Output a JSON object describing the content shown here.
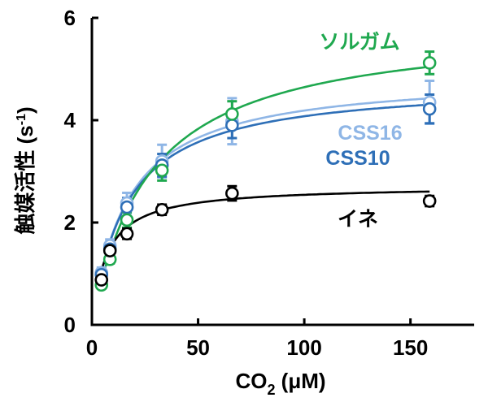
{
  "chart_data": {
    "type": "scatter",
    "xlabel": {
      "main": "CO",
      "sub": "2",
      "unit": " (μM)"
    },
    "ylabel": {
      "main": "触媒活性",
      "unit": " (s",
      "sup": "-1",
      "close": ")"
    },
    "xlim": [
      0,
      180
    ],
    "ylim": [
      0,
      6
    ],
    "x_ticks": [
      0,
      50,
      100,
      150
    ],
    "y_ticks": [
      0,
      2,
      4,
      6
    ],
    "x_tick_labels": [
      "0",
      "50",
      "100",
      "150"
    ],
    "y_tick_labels": [
      "0",
      "2",
      "4",
      "6"
    ],
    "grid": false,
    "series": [
      {
        "name": "CSS16",
        "color": "#8fb6e6",
        "x": [
          4.5,
          8.5,
          16.5,
          33,
          66,
          159
        ],
        "y": [
          1.02,
          1.55,
          2.38,
          3.2,
          3.98,
          4.35
        ],
        "err": [
          0.1,
          0.12,
          0.2,
          0.32,
          0.45,
          0.42
        ],
        "fit": {
          "vmax": 4.9,
          "km": 17
        }
      },
      {
        "name": "CSS10",
        "color": "#2e6fb7",
        "x": [
          4.5,
          8.5,
          16.5,
          33,
          66,
          159
        ],
        "y": [
          0.98,
          1.48,
          2.3,
          3.12,
          3.9,
          4.22
        ],
        "err": [
          0.08,
          0.12,
          0.18,
          0.22,
          0.25,
          0.28
        ],
        "fit": {
          "vmax": 4.75,
          "km": 16.5
        }
      },
      {
        "name": "ソルガム",
        "color": "#1fa84f",
        "x": [
          4.5,
          8.5,
          16.5,
          33,
          66,
          159
        ],
        "y": [
          0.78,
          1.28,
          2.05,
          3.02,
          4.12,
          5.12
        ],
        "err": [
          0.06,
          0.08,
          0.15,
          0.2,
          0.25,
          0.22
        ],
        "fit": {
          "vmax": 5.9,
          "km": 27
        }
      },
      {
        "name": "イネ",
        "color": "#000000",
        "x": [
          4.5,
          8.5,
          16.5,
          33,
          66,
          159
        ],
        "y": [
          0.88,
          1.45,
          1.78,
          2.25,
          2.57,
          2.42
        ],
        "err": [
          0.05,
          0.08,
          0.1,
          0.1,
          0.14,
          0.1
        ],
        "fit": {
          "vmax": 2.72,
          "km": 7
        }
      }
    ]
  }
}
